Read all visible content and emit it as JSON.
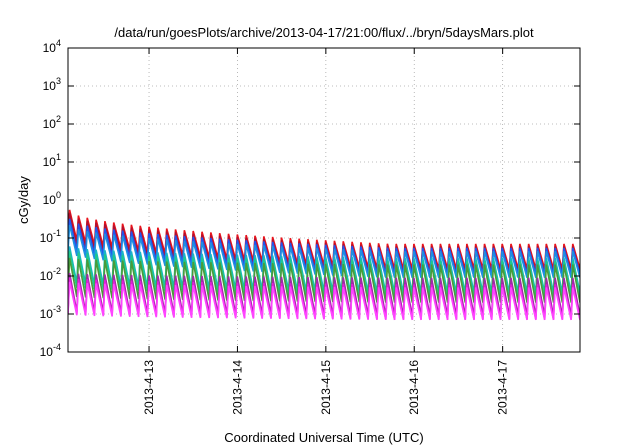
{
  "chart_data": {
    "type": "line",
    "title": "/data/run/goesPlots/archive/2013-04-17/21:00/flux/../bryn/5daysMars.plot",
    "xlabel": "Coordinated Universal Time (UTC)",
    "ylabel": "cGy/day",
    "yscale": "log",
    "ylim": [
      0.0001,
      10000
    ],
    "xlim": [
      "2013-04-12 02:00",
      "2013-04-17 21:00"
    ],
    "grid": true,
    "x_ticks": [
      {
        "label": "2013-4-13",
        "t": "2013-04-13 00:00"
      },
      {
        "label": "2013-4-14",
        "t": "2013-04-14 00:00"
      },
      {
        "label": "2013-4-15",
        "t": "2013-04-15 00:00"
      },
      {
        "label": "2013-4-16",
        "t": "2013-04-16 00:00"
      },
      {
        "label": "2013-4-17",
        "t": "2013-04-17 00:00"
      }
    ],
    "y_ticks": [
      {
        "base": "10",
        "exp": "4",
        "value": 10000
      },
      {
        "base": "10",
        "exp": "3",
        "value": 1000
      },
      {
        "base": "10",
        "exp": "2",
        "value": 100
      },
      {
        "base": "10",
        "exp": "1",
        "value": 10
      },
      {
        "base": "10",
        "exp": "0",
        "value": 1
      },
      {
        "base": "10",
        "exp": "-1",
        "value": 0.1
      },
      {
        "base": "10",
        "exp": "-2",
        "value": 0.01
      },
      {
        "base": "10",
        "exp": "-3",
        "value": 0.001
      },
      {
        "base": "10",
        "exp": "-4",
        "value": 0.0001
      }
    ],
    "pattern": {
      "description_of_form": "sawtooth",
      "cycles": 58
    },
    "series": [
      {
        "color": "#e8141c",
        "peak_start": 0.55,
        "peak_end": 0.07,
        "trough_ratio": 0.22
      },
      {
        "color": "#b01030",
        "peak_start": 0.45,
        "peak_end": 0.06,
        "trough_ratio": 0.2
      },
      {
        "color": "#2255ee",
        "peak_start": 0.32,
        "peak_end": 0.055,
        "trough_ratio": 0.2
      },
      {
        "color": "#1e8fe0",
        "peak_start": 0.22,
        "peak_end": 0.045,
        "trough_ratio": 0.2
      },
      {
        "color": "#19b4c8",
        "peak_start": 0.06,
        "peak_end": 0.03,
        "trough_ratio": 0.12
      },
      {
        "color": "#1ec98a",
        "peak_start": 0.045,
        "peak_end": 0.025,
        "trough_ratio": 0.12
      },
      {
        "color": "#4a9a3a",
        "peak_start": 0.03,
        "peak_end": 0.02,
        "trough_ratio": 0.1
      },
      {
        "color": "#a02aa8",
        "peak_start": 0.012,
        "peak_end": 0.009,
        "trough_ratio": 0.1
      },
      {
        "color": "#e020d8",
        "peak_start": 0.009,
        "peak_end": 0.006,
        "trough_ratio": 0.12
      },
      {
        "color": "#ff44ff",
        "peak_start": 0.007,
        "peak_end": 0.005,
        "trough_ratio": 0.14
      }
    ]
  }
}
